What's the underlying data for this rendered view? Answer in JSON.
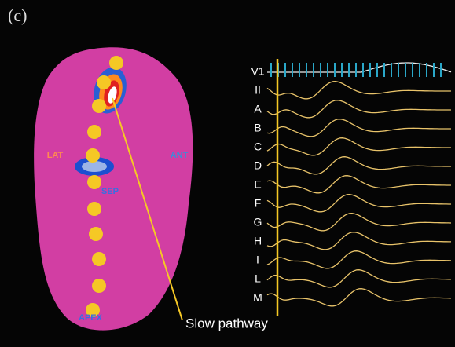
{
  "panel_label": "(c)",
  "map": {
    "labels": {
      "lateral": "LAT",
      "anterior": "ANT",
      "septal": "SEP",
      "apex": "APEX"
    }
  },
  "traces": [
    "V1",
    "II",
    "A",
    "B",
    "C",
    "D",
    "E",
    "F",
    "G",
    "H",
    "I",
    "L",
    "M"
  ],
  "annotation": "Slow pathway"
}
